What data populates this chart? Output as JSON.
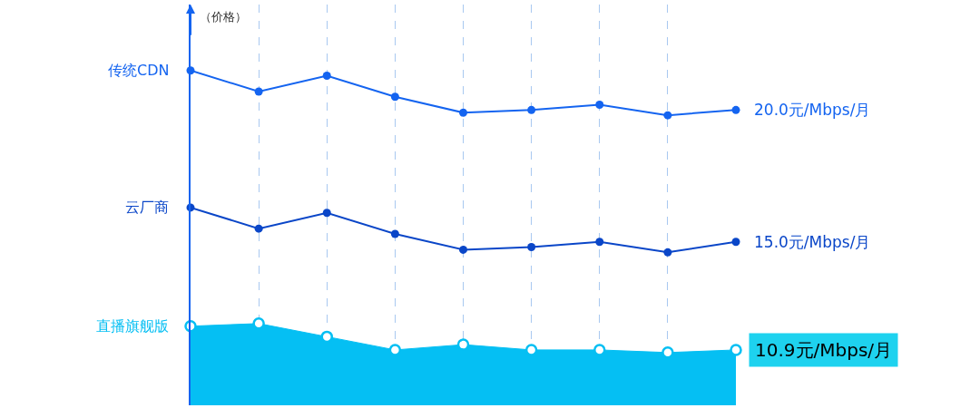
{
  "chart_data": {
    "type": "line",
    "ylabel": "（价格）",
    "categories": [
      null,
      null,
      null,
      null,
      null,
      null,
      null,
      null,
      null
    ],
    "grid": "x",
    "legend": false,
    "marker": "circle",
    "ylim": [
      8.8,
      24.0
    ],
    "series": [
      {
        "name": "传统CDN",
        "type": "line",
        "color": "#1464f0",
        "values": [
          21.5,
          20.7,
          21.3,
          20.5,
          19.9,
          20.0,
          20.2,
          19.8,
          20.0
        ],
        "value_labels": [
          null,
          null,
          null,
          null,
          null,
          null,
          null,
          null,
          "20.0元/Mbps/月"
        ]
      },
      {
        "name": "云厂商",
        "type": "line",
        "color": "#0a46c8",
        "values": [
          16.3,
          15.5,
          16.1,
          15.3,
          14.7,
          14.8,
          15.0,
          14.6,
          15.0
        ],
        "value_labels": [
          null,
          null,
          null,
          null,
          null,
          null,
          null,
          null,
          "15.0元/Mbps/月"
        ]
      },
      {
        "name": "直播旗舰版",
        "type": "area",
        "color": "#05bff3",
        "values": [
          11.8,
          11.9,
          11.4,
          10.9,
          11.1,
          10.9,
          10.9,
          10.8,
          10.9
        ],
        "value_labels": [
          null,
          null,
          null,
          null,
          null,
          null,
          null,
          null,
          "10.9元/Mbps/月"
        ]
      }
    ]
  }
}
